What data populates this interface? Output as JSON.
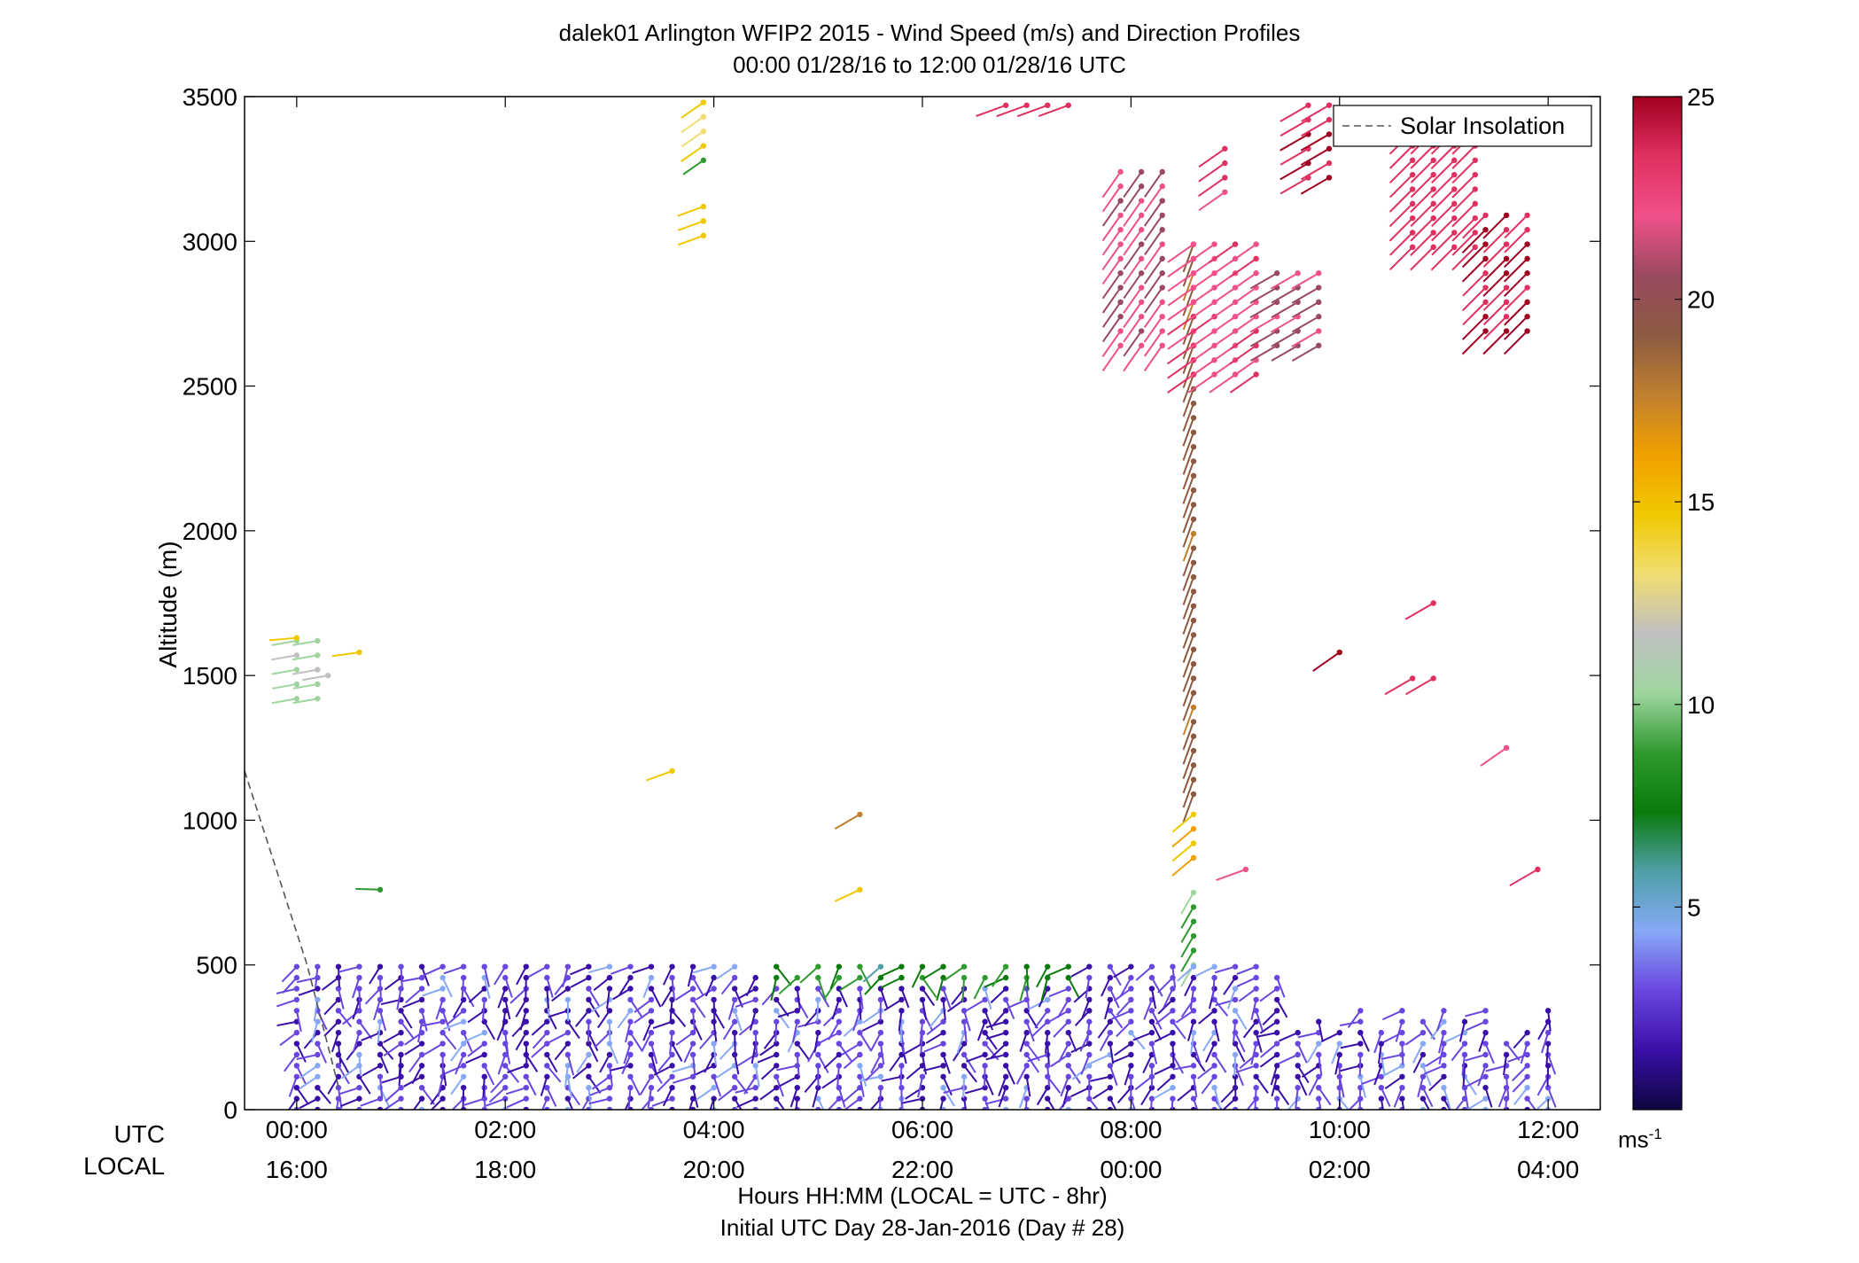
{
  "chart_data": {
    "type": "scatter",
    "subtype": "wind barb profiles",
    "title": "dalek01 Arlington WFIP2 2015 - Wind Speed (m/s) and Direction Profiles",
    "subtitle": "00:00 01/28/16 to 12:00 01/28/16  UTC",
    "xlabel": "Hours HH:MM  (LOCAL = UTC - 8hr)",
    "xlabel2": "Initial UTC Day 28-Jan-2016 (Day # 28)",
    "ylabel": "Altitude (m)",
    "utc_row_label": "UTC",
    "local_row_label": "LOCAL",
    "xlim": [
      -0.5,
      12.5
    ],
    "ylim": [
      0,
      3500
    ],
    "x_ticks_utc": [
      "00:00",
      "02:00",
      "04:00",
      "06:00",
      "08:00",
      "10:00",
      "12:00"
    ],
    "x_ticks_local": [
      "16:00",
      "18:00",
      "20:00",
      "22:00",
      "00:00",
      "02:00",
      "04:00"
    ],
    "x_tick_values": [
      0,
      2,
      4,
      6,
      8,
      10,
      12
    ],
    "y_ticks": [
      0,
      500,
      1000,
      1500,
      2000,
      2500,
      3000,
      3500
    ],
    "colorbar": {
      "min": 0,
      "max": 25,
      "ticks": [
        5,
        10,
        15,
        20,
        25
      ],
      "units": "ms",
      "units_exp": "-1",
      "stops": [
        "#0d0640",
        "#3a0fa8",
        "#6a46e0",
        "#87a9f5",
        "#4f9fa8",
        "#0a7a0a",
        "#2f9a2f",
        "#9fd69f",
        "#c0c0c0",
        "#f2dd70",
        "#f0c800",
        "#f0a000",
        "#c08030",
        "#8b5a40",
        "#9a4a60",
        "#f0508a",
        "#e03060",
        "#a00020"
      ]
    },
    "legend": {
      "label": "Solar Insolation",
      "placement": "top-right"
    },
    "solar_insolation": {
      "x": [
        -0.5,
        0.1,
        0.4
      ],
      "y": [
        1170,
        500,
        80
      ]
    },
    "clusters": [
      {
        "x": [
          0.0,
          0.3
        ],
        "alt": [
          1420,
          1660
        ],
        "speed": 10.5,
        "dir": 260
      },
      {
        "x": [
          0.0
        ],
        "alt": [
          1630,
          1660
        ],
        "speed": 14.5,
        "dir": 265
      },
      {
        "x": [
          0.3
        ],
        "alt": [
          1500,
          1530
        ],
        "speed": 12.5,
        "dir": 260
      },
      {
        "x": [
          0.6
        ],
        "alt": [
          1580
        ],
        "speed": 14.5,
        "dir": 262
      },
      {
        "x": [
          0.8
        ],
        "alt": [
          760
        ],
        "speed": 10.0,
        "dir": 272
      },
      {
        "x": [
          3.6
        ],
        "alt": [
          1170
        ],
        "speed": 15.0,
        "dir": 250
      },
      {
        "x": [
          3.9
        ],
        "alt": [
          3020,
          3120
        ],
        "speed": 14.5,
        "dir": 250
      },
      {
        "x": [
          3.9
        ],
        "alt": [
          3280
        ],
        "speed": 9.0,
        "dir": 235
      },
      {
        "x": [
          3.9
        ],
        "alt": [
          3330,
          3500
        ],
        "speed": 14.0,
        "dir": 235
      },
      {
        "x": [
          5.4
        ],
        "alt": [
          1020,
          1050
        ],
        "speed": 17.5,
        "dir": 240
      },
      {
        "x": [
          5.4
        ],
        "alt": [
          760
        ],
        "speed": 15.5,
        "dir": 245
      },
      {
        "x": [
          6.8,
          7.5
        ],
        "alt": [
          3470,
          3500
        ],
        "speed": 23.0,
        "dir": 250
      },
      {
        "x": [
          7.9,
          8.4
        ],
        "alt": [
          2640,
          3270
        ],
        "speed": 21.5,
        "dir": 215
      },
      {
        "x": [
          8.6
        ],
        "alt": [
          1090,
          3020
        ],
        "speed": 19.0,
        "dir": 200
      },
      {
        "x": [
          8.6
        ],
        "alt": [
          870,
          1020
        ],
        "speed": 15.0,
        "dir": 230
      },
      {
        "x": [
          8.6
        ],
        "alt": [
          500,
          760
        ],
        "speed": 9.5,
        "dir": 210
      },
      {
        "x": [
          8.6,
          9.3
        ],
        "alt": [
          2540,
          3020
        ],
        "speed": 22.5,
        "dir": 235
      },
      {
        "x": [
          8.9
        ],
        "alt": [
          3170,
          3320
        ],
        "speed": 23.5,
        "dir": 235
      },
      {
        "x": [
          9.1
        ],
        "alt": [
          830
        ],
        "speed": 23.0,
        "dir": 250
      },
      {
        "x": [
          9.4,
          9.8
        ],
        "alt": [
          2640,
          2930
        ],
        "speed": 21.0,
        "dir": 240
      },
      {
        "x": [
          9.7,
          10.0
        ],
        "alt": [
          3220,
          3470
        ],
        "speed": 24.0,
        "dir": 240
      },
      {
        "x": [
          10.0
        ],
        "alt": [
          1580
        ],
        "speed": 24.0,
        "dir": 235
      },
      {
        "x": [
          10.7,
          10.9
        ],
        "alt": [
          1490,
          1530
        ],
        "speed": 24.0,
        "dir": 240
      },
      {
        "x": [
          10.9
        ],
        "alt": [
          1750
        ],
        "speed": 24.0,
        "dir": 240
      },
      {
        "x": [
          10.7,
          11.4
        ],
        "alt": [
          2980,
          3470
        ],
        "speed": 23.5,
        "dir": 225
      },
      {
        "x": [
          11.4,
          11.8
        ],
        "alt": [
          2690,
          3120
        ],
        "speed": 24.0,
        "dir": 225
      },
      {
        "x": [
          11.6
        ],
        "alt": [
          1250
        ],
        "speed": 23.0,
        "dir": 235
      },
      {
        "x": [
          11.9
        ],
        "alt": [
          830,
          870
        ],
        "speed": 24.5,
        "dir": 240
      },
      {
        "x": [
          0.0,
          12.0
        ],
        "alt": [
          0,
          530
        ],
        "speed": 2.5,
        "dir": 200
      }
    ]
  }
}
